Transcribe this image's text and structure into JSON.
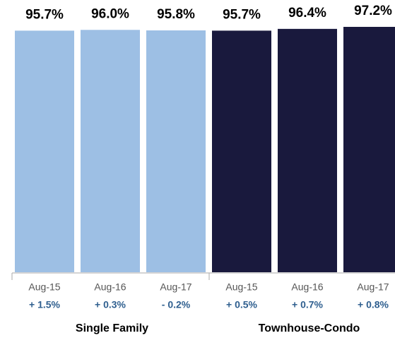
{
  "chart_data": {
    "type": "bar",
    "ylim": [
      0,
      100
    ],
    "series": [
      {
        "name": "Single Family",
        "color": "#9dbfe4",
        "categories": [
          "Aug-15",
          "Aug-16",
          "Aug-17"
        ],
        "values": [
          95.7,
          96.0,
          95.8
        ],
        "value_labels": [
          "95.7%",
          "96.0%",
          "95.8%"
        ],
        "changes": [
          "+ 1.5%",
          "+ 0.3%",
          "- 0.2%"
        ]
      },
      {
        "name": "Townhouse-Condo",
        "color": "#19193d",
        "categories": [
          "Aug-15",
          "Aug-16",
          "Aug-17"
        ],
        "values": [
          95.7,
          96.4,
          97.2
        ],
        "value_labels": [
          "95.7%",
          "96.4%",
          "97.2%"
        ],
        "changes": [
          "+ 0.5%",
          "+ 0.7%",
          "+ 0.8%"
        ]
      }
    ]
  }
}
